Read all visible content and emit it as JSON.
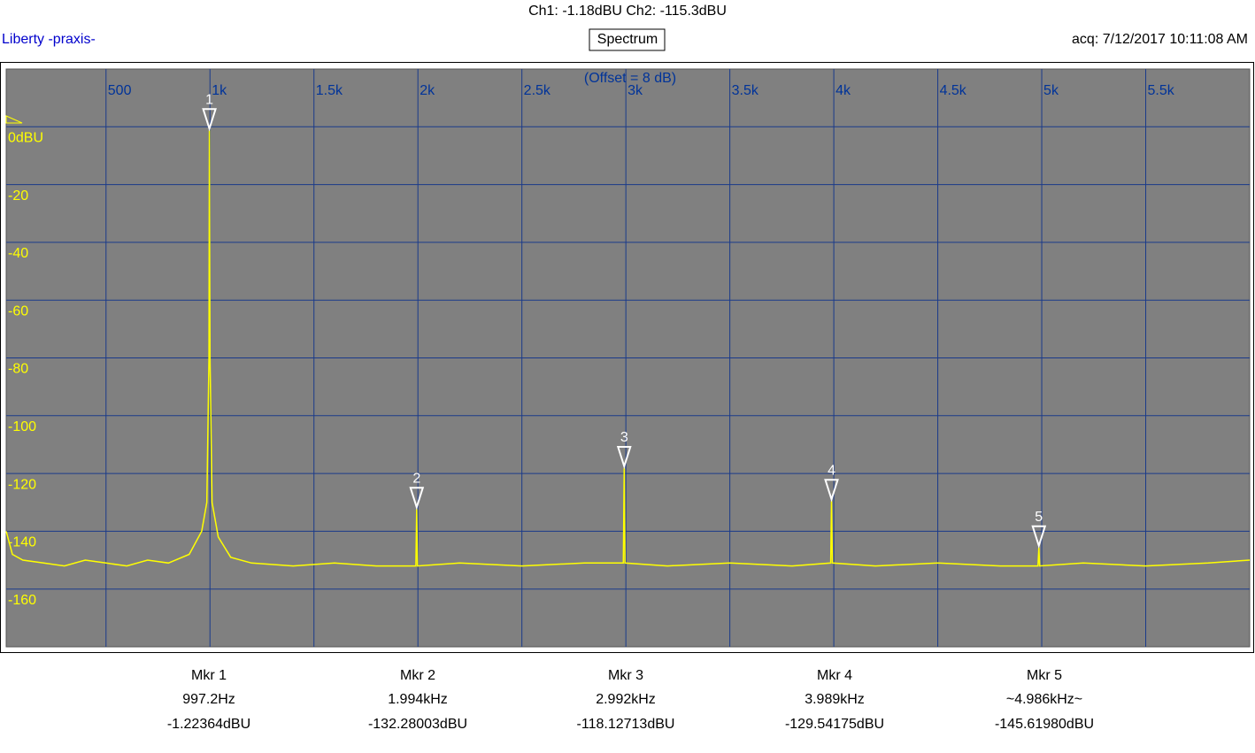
{
  "header": {
    "channels": "Ch1: -1.18dBU  Ch2: -115.3dBU",
    "brand": "Liberty -praxis-",
    "mode": "Spectrum",
    "acquired": "acq: 7/12/2017 10:11:08 AM"
  },
  "chart_data": {
    "type": "line",
    "annotation": "(Offset = 8 dB)",
    "x": [
      20,
      50,
      100,
      200,
      300,
      400,
      500,
      600,
      700,
      800,
      900,
      960,
      985,
      995,
      997.2,
      1000,
      1010,
      1040,
      1100,
      1200,
      1400,
      1600,
      1800,
      1990,
      1994,
      1998,
      2200,
      2500,
      2800,
      2988,
      2992,
      2996,
      3200,
      3500,
      3800,
      3985,
      3989,
      3993,
      4200,
      4500,
      4800,
      4982,
      4986,
      4990,
      5200,
      5500,
      5800,
      6000
    ],
    "values": [
      -140,
      -148,
      -150,
      -151,
      -152,
      -150,
      -151,
      -152,
      -150,
      -151,
      -148,
      -140,
      -130,
      -80,
      -1.2,
      -80,
      -130,
      -142,
      -149,
      -151,
      -152,
      -151,
      -152,
      -152,
      -132.3,
      -152,
      -151,
      -152,
      -151,
      -151,
      -118.1,
      -151,
      -152,
      -151,
      -152,
      -151,
      -129.5,
      -151,
      -152,
      -151,
      -152,
      -152,
      -145.6,
      -152,
      -151,
      -152,
      -151,
      -150
    ],
    "color": "#ffff00",
    "xlim": [
      20,
      6000
    ],
    "ylim": [
      -180,
      20
    ],
    "xticks": [
      {
        "value": 500,
        "label": "500"
      },
      {
        "value": 1000,
        "label": "1k"
      },
      {
        "value": 1500,
        "label": "1.5k"
      },
      {
        "value": 2000,
        "label": "2k"
      },
      {
        "value": 2500,
        "label": "2.5k"
      },
      {
        "value": 3000,
        "label": "3k"
      },
      {
        "value": 3500,
        "label": "3.5k"
      },
      {
        "value": 4000,
        "label": "4k"
      },
      {
        "value": 4500,
        "label": "4.5k"
      },
      {
        "value": 5000,
        "label": "5k"
      },
      {
        "value": 5500,
        "label": "5.5k"
      }
    ],
    "yticks": [
      {
        "value": 0,
        "label": "0dBU"
      },
      -20,
      -40,
      -60,
      -80,
      -100,
      -120,
      -140,
      -160
    ],
    "grid": true,
    "markers": [
      {
        "number": "1",
        "name": "Mkr 1",
        "x": 997.2,
        "x_label": "997.2Hz",
        "y": -1.22364,
        "y_label": "-1.22364dBU"
      },
      {
        "number": "2",
        "name": "Mkr 2",
        "x": 1994,
        "x_label": "1.994kHz",
        "y": -132.28003,
        "y_label": "-132.28003dBU"
      },
      {
        "number": "3",
        "name": "Mkr 3",
        "x": 2992,
        "x_label": "2.992kHz",
        "y": -118.12713,
        "y_label": "-118.12713dBU"
      },
      {
        "number": "4",
        "name": "Mkr 4",
        "x": 3989,
        "x_label": "3.989kHz",
        "y": -129.54175,
        "y_label": "-129.54175dBU"
      },
      {
        "number": "5",
        "name": "Mkr 5",
        "x": 4986,
        "x_label": "~4.986kHz~",
        "y": -145.6198,
        "y_label": "-145.61980dBU"
      }
    ]
  }
}
